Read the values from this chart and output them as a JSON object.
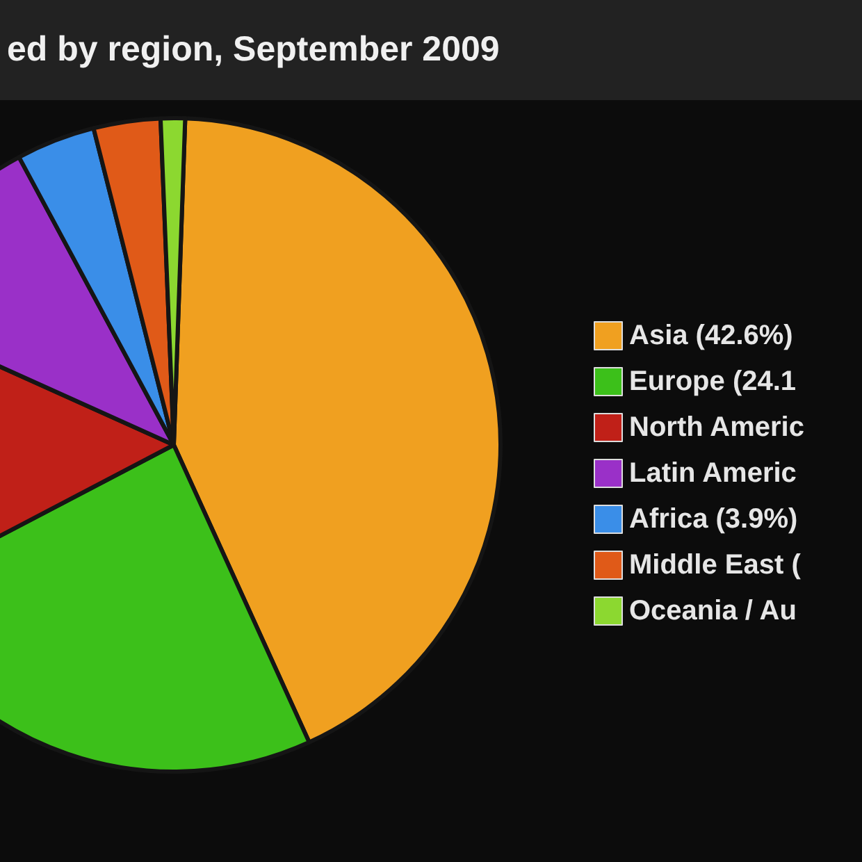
{
  "chart_data": {
    "type": "pie",
    "title": "ed by region, September 2009",
    "categories": [
      "Asia (42.6%)",
      "Europe (24.1",
      "North Americ",
      "Latin Americ",
      "Africa (3.9%)",
      "Middle East (",
      "Oceania / Au"
    ],
    "values": [
      42.6,
      24.1,
      14.4,
      10.4,
      3.9,
      3.3,
      1.2
    ],
    "colors": [
      "#f0a020",
      "#3cc01a",
      "#c02018",
      "#9a30c8",
      "#3a8ee8",
      "#e05a18",
      "#8cd830"
    ],
    "legend": "right"
  }
}
